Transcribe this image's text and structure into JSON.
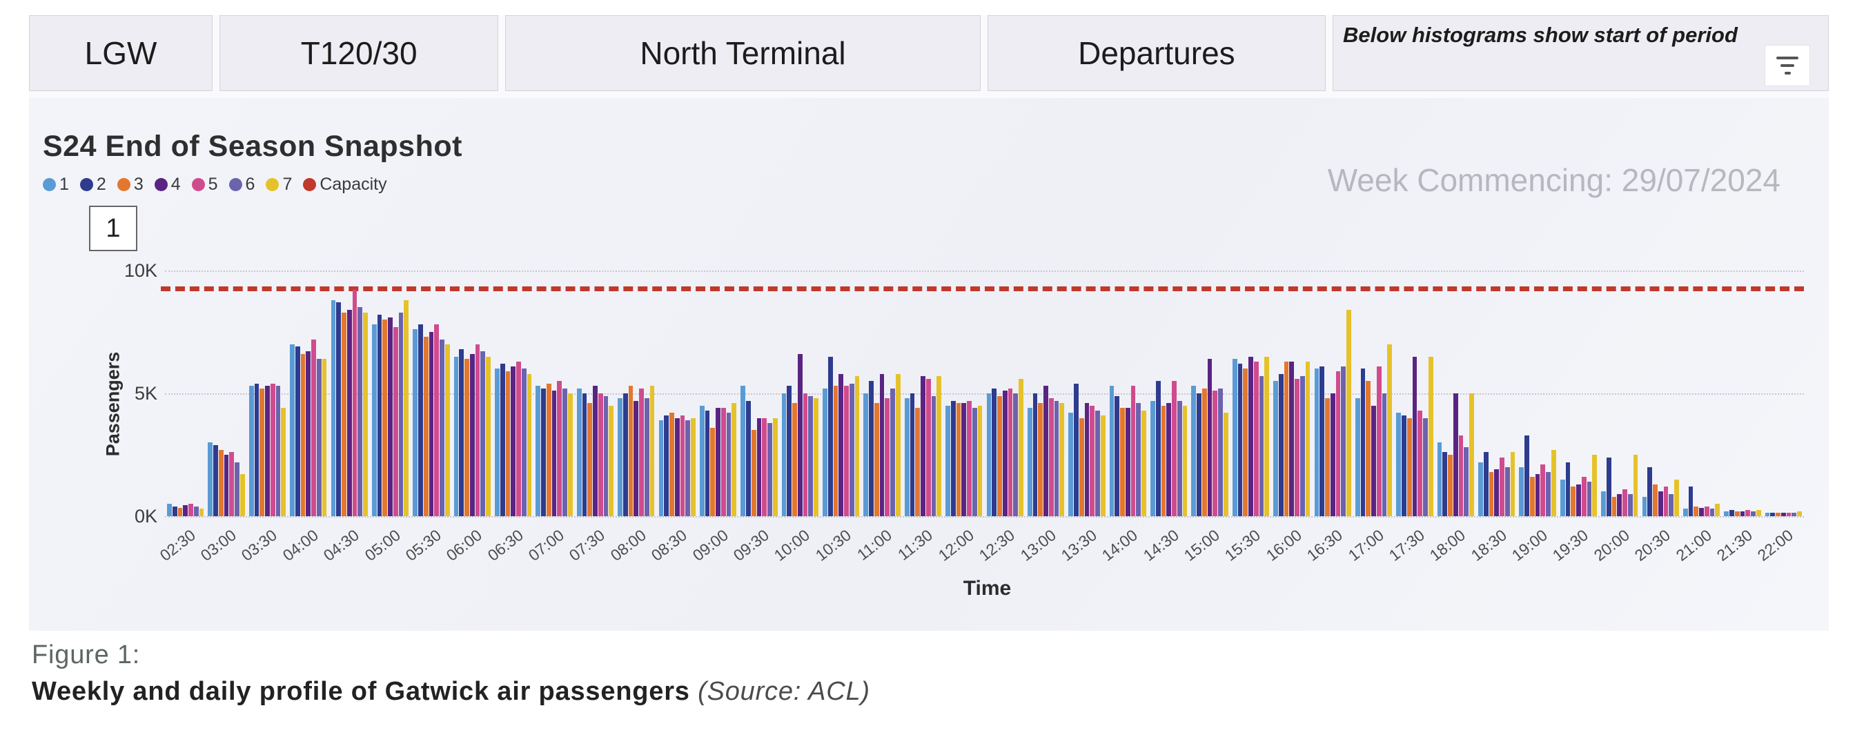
{
  "header": {
    "slicers": [
      {
        "label": "LGW"
      },
      {
        "label": "T120/30"
      },
      {
        "label": "North Terminal"
      },
      {
        "label": "Departures"
      }
    ],
    "note": "Below histograms show start of period",
    "icons": {
      "filter": "funnel-lines"
    }
  },
  "chart": {
    "week_commencing": "Week Commencing: 29/07/2024",
    "visual_number": "1"
  },
  "chart_data": {
    "type": "bar",
    "title": "S24 End of Season Snapshot",
    "xlabel": "Time",
    "ylabel": "Passengers",
    "ylim": [
      0,
      10000
    ],
    "grid": "horizontal-dotted",
    "legend_position": "top-left",
    "yticks": [
      {
        "label": "0K",
        "value": 0
      },
      {
        "label": "5K",
        "value": 5000
      },
      {
        "label": "10K",
        "value": 10000
      }
    ],
    "categories": [
      "02:30",
      "03:00",
      "03:30",
      "04:00",
      "04:30",
      "05:00",
      "05:30",
      "06:00",
      "06:30",
      "07:00",
      "07:30",
      "08:00",
      "08:30",
      "09:00",
      "09:30",
      "10:00",
      "10:30",
      "11:00",
      "11:30",
      "12:00",
      "12:30",
      "13:00",
      "13:30",
      "14:00",
      "14:30",
      "15:00",
      "15:30",
      "16:00",
      "16:30",
      "17:00",
      "17:30",
      "18:00",
      "18:30",
      "19:00",
      "19:30",
      "20:00",
      "20:30",
      "21:00",
      "21:30",
      "22:00"
    ],
    "series": [
      {
        "name": "1",
        "color": "#5a9bd5",
        "values": [
          500,
          3000,
          5300,
          7000,
          8800,
          7800,
          7600,
          6500,
          6000,
          5300,
          5200,
          4800,
          3900,
          4500,
          5300,
          5000,
          5200,
          5000,
          4800,
          4500,
          5000,
          4400,
          4200,
          5300,
          4700,
          5300,
          6400,
          5500,
          6000,
          4800,
          4200,
          3000,
          2200,
          2000,
          1500,
          1000,
          800,
          300,
          200,
          150
        ]
      },
      {
        "name": "2",
        "color": "#2d3c8e",
        "values": [
          400,
          2900,
          5400,
          6900,
          8700,
          8200,
          7800,
          6800,
          6200,
          5200,
          5000,
          5000,
          4100,
          4300,
          4700,
          5300,
          6500,
          5500,
          5000,
          4700,
          5200,
          5000,
          5400,
          4900,
          5500,
          5000,
          6200,
          5800,
          6100,
          6000,
          4100,
          2600,
          2600,
          3300,
          2200,
          2400,
          2000,
          1200,
          250,
          150
        ]
      },
      {
        "name": "3",
        "color": "#e2772e",
        "values": [
          350,
          2700,
          5200,
          6600,
          8300,
          8000,
          7300,
          6400,
          5900,
          5400,
          4600,
          5300,
          4200,
          3600,
          3500,
          4600,
          5300,
          4600,
          4400,
          4600,
          4900,
          4600,
          4000,
          4400,
          4500,
          5200,
          6000,
          6300,
          4800,
          5500,
          4000,
          2500,
          1800,
          1600,
          1200,
          800,
          1300,
          400,
          200,
          150
        ]
      },
      {
        "name": "4",
        "color": "#5a2482",
        "values": [
          450,
          2500,
          5300,
          6700,
          8400,
          8100,
          7500,
          6600,
          6100,
          5100,
          5300,
          4700,
          4000,
          4400,
          4000,
          6600,
          5800,
          5800,
          5700,
          4600,
          5100,
          5300,
          4600,
          4400,
          4600,
          6400,
          6500,
          6300,
          5000,
          4500,
          6500,
          5000,
          1900,
          1700,
          1300,
          900,
          1000,
          350,
          200,
          150
        ]
      },
      {
        "name": "5",
        "color": "#d04b8e",
        "values": [
          500,
          2600,
          5400,
          7200,
          9200,
          7700,
          7800,
          7000,
          6300,
          5500,
          5000,
          5200,
          4100,
          4400,
          4000,
          5000,
          5300,
          4800,
          5600,
          4700,
          5200,
          4800,
          4500,
          5300,
          5500,
          5100,
          6300,
          5600,
          5900,
          6100,
          4300,
          3300,
          2400,
          2100,
          1600,
          1100,
          1200,
          400,
          250,
          150
        ]
      },
      {
        "name": "6",
        "color": "#6c63ae",
        "values": [
          400,
          2200,
          5300,
          6400,
          8500,
          8300,
          7200,
          6700,
          6000,
          5200,
          4900,
          4800,
          3900,
          4200,
          3800,
          4900,
          5400,
          5200,
          4900,
          4400,
          5000,
          4700,
          4300,
          4600,
          4700,
          5200,
          5700,
          5700,
          6100,
          5000,
          4000,
          2800,
          2000,
          1800,
          1400,
          900,
          900,
          300,
          200,
          150
        ]
      },
      {
        "name": "7",
        "color": "#e6c22a",
        "values": [
          300,
          1700,
          4400,
          6400,
          8300,
          8800,
          7000,
          6500,
          5800,
          5000,
          4500,
          5300,
          4000,
          4600,
          4000,
          4800,
          5700,
          5800,
          5700,
          4500,
          5600,
          4600,
          4100,
          4300,
          4500,
          4200,
          6500,
          6300,
          8400,
          7000,
          6500,
          5000,
          2600,
          2700,
          2500,
          2500,
          1500,
          500,
          250,
          200
        ]
      },
      {
        "name": "Capacity",
        "color": "#c0392b",
        "line_value": 9350
      }
    ]
  },
  "caption": {
    "figure": "Figure 1:",
    "title": "Weekly and daily profile of Gatwick air passengers",
    "source": "(Source: ACL)"
  }
}
